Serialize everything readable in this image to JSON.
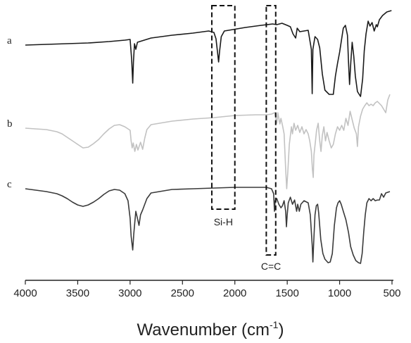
{
  "chart_data": {
    "type": "line",
    "title": "",
    "xlabel": "Wavenumber (cm",
    "xlabel_sup": "-1",
    "xlabel_end": ")",
    "ylabel": "",
    "xlim": [
      4000,
      500
    ],
    "x_reversed": true,
    "yticks_shown": false,
    "grid": false,
    "x_ticks": [
      4000,
      3500,
      3000,
      2500,
      2000,
      1500,
      1000,
      500
    ],
    "x_tick_labels": [
      "4000",
      "3500",
      "3000",
      "2500",
      "2000",
      "1500",
      "1000",
      "500"
    ],
    "series": [
      {
        "name": "a",
        "color": "#1a1a1a",
        "points": [
          [
            4000,
            64
          ],
          [
            3800,
            63
          ],
          [
            3600,
            62
          ],
          [
            3400,
            61
          ],
          [
            3200,
            59
          ],
          [
            3050,
            57
          ],
          [
            3000,
            56
          ],
          [
            2985,
            85
          ],
          [
            2975,
            118
          ],
          [
            2968,
            88
          ],
          [
            2958,
            62
          ],
          [
            2945,
            70
          ],
          [
            2930,
            60
          ],
          [
            2800,
            54
          ],
          [
            2600,
            50
          ],
          [
            2400,
            47
          ],
          [
            2250,
            44
          ],
          [
            2200,
            46
          ],
          [
            2180,
            55
          ],
          [
            2165,
            75
          ],
          [
            2155,
            88
          ],
          [
            2145,
            72
          ],
          [
            2130,
            52
          ],
          [
            2100,
            44
          ],
          [
            1900,
            39
          ],
          [
            1750,
            36
          ],
          [
            1640,
            34
          ],
          [
            1600,
            35
          ],
          [
            1550,
            33
          ],
          [
            1500,
            36
          ],
          [
            1470,
            38
          ],
          [
            1445,
            48
          ],
          [
            1420,
            54
          ],
          [
            1405,
            40
          ],
          [
            1380,
            45
          ],
          [
            1300,
            43
          ],
          [
            1270,
            70
          ],
          [
            1262,
            133
          ],
          [
            1255,
            70
          ],
          [
            1235,
            52
          ],
          [
            1210,
            56
          ],
          [
            1190,
            68
          ],
          [
            1165,
            105
          ],
          [
            1140,
            128
          ],
          [
            1100,
            134
          ],
          [
            1060,
            134
          ],
          [
            1040,
            108
          ],
          [
            1020,
            90
          ],
          [
            1000,
            74
          ],
          [
            980,
            55
          ],
          [
            965,
            40
          ],
          [
            945,
            36
          ],
          [
            925,
            50
          ],
          [
            915,
            88
          ],
          [
            905,
            120
          ],
          [
            893,
            88
          ],
          [
            880,
            60
          ],
          [
            865,
            80
          ],
          [
            850,
            108
          ],
          [
            830,
            130
          ],
          [
            800,
            137
          ],
          [
            780,
            112
          ],
          [
            765,
            72
          ],
          [
            748,
            48
          ],
          [
            728,
            30
          ],
          [
            710,
            37
          ],
          [
            690,
            32
          ],
          [
            670,
            44
          ],
          [
            650,
            35
          ],
          [
            640,
            38
          ],
          [
            620,
            28
          ],
          [
            590,
            22
          ],
          [
            550,
            17
          ],
          [
            505,
            15
          ]
        ]
      },
      {
        "name": "b",
        "color": "#c2c2c2",
        "points": [
          [
            4000,
            182
          ],
          [
            3900,
            183
          ],
          [
            3800,
            184
          ],
          [
            3700,
            187
          ],
          [
            3650,
            190
          ],
          [
            3600,
            195
          ],
          [
            3550,
            200
          ],
          [
            3500,
            205
          ],
          [
            3450,
            210
          ],
          [
            3400,
            209
          ],
          [
            3350,
            204
          ],
          [
            3300,
            198
          ],
          [
            3250,
            190
          ],
          [
            3200,
            183
          ],
          [
            3150,
            178
          ],
          [
            3100,
            177
          ],
          [
            3050,
            180
          ],
          [
            3000,
            185
          ],
          [
            2990,
            200
          ],
          [
            2980,
            210
          ],
          [
            2970,
            203
          ],
          [
            2955,
            215
          ],
          [
            2940,
            205
          ],
          [
            2925,
            213
          ],
          [
            2900,
            202
          ],
          [
            2880,
            212
          ],
          [
            2860,
            196
          ],
          [
            2840,
            184
          ],
          [
            2800,
            177
          ],
          [
            2600,
            172
          ],
          [
            2400,
            169
          ],
          [
            2200,
            167
          ],
          [
            2000,
            164
          ],
          [
            1800,
            163
          ],
          [
            1700,
            163
          ],
          [
            1650,
            162
          ],
          [
            1620,
            160
          ],
          [
            1600,
            175
          ],
          [
            1590,
            160
          ],
          [
            1570,
            176
          ],
          [
            1560,
            168
          ],
          [
            1545,
            178
          ],
          [
            1530,
            190
          ],
          [
            1515,
            240
          ],
          [
            1505,
            268
          ],
          [
            1495,
            245
          ],
          [
            1480,
            205
          ],
          [
            1460,
            180
          ],
          [
            1450,
            190
          ],
          [
            1435,
            175
          ],
          [
            1420,
            185
          ],
          [
            1400,
            178
          ],
          [
            1380,
            188
          ],
          [
            1360,
            180
          ],
          [
            1340,
            190
          ],
          [
            1320,
            184
          ],
          [
            1300,
            190
          ],
          [
            1285,
            200
          ],
          [
            1270,
            215
          ],
          [
            1260,
            240
          ],
          [
            1252,
            252
          ],
          [
            1245,
            220
          ],
          [
            1230,
            200
          ],
          [
            1220,
            185
          ],
          [
            1205,
            175
          ],
          [
            1190,
            200
          ],
          [
            1178,
            215
          ],
          [
            1165,
            192
          ],
          [
            1150,
            180
          ],
          [
            1135,
            200
          ],
          [
            1120,
            188
          ],
          [
            1100,
            200
          ],
          [
            1080,
            210
          ],
          [
            1060,
            205
          ],
          [
            1040,
            190
          ],
          [
            1020,
            180
          ],
          [
            1000,
            185
          ],
          [
            980,
            178
          ],
          [
            960,
            185
          ],
          [
            940,
            168
          ],
          [
            920,
            178
          ],
          [
            900,
            158
          ],
          [
            880,
            170
          ],
          [
            860,
            182
          ],
          [
            840,
            190
          ],
          [
            830,
            208
          ],
          [
            820,
            180
          ],
          [
            800,
            165
          ],
          [
            780,
            155
          ],
          [
            760,
            150
          ],
          [
            740,
            146
          ],
          [
            720,
            150
          ],
          [
            700,
            148
          ],
          [
            680,
            150
          ],
          [
            660,
            146
          ],
          [
            640,
            144
          ],
          [
            600,
            150
          ],
          [
            580,
            155
          ],
          [
            560,
            160
          ],
          [
            540,
            142
          ],
          [
            520,
            134
          ]
        ]
      },
      {
        "name": "c",
        "color": "#3a3a3a",
        "points": [
          [
            4000,
            268
          ],
          [
            3900,
            270
          ],
          [
            3800,
            272
          ],
          [
            3700,
            275
          ],
          [
            3650,
            278
          ],
          [
            3600,
            282
          ],
          [
            3550,
            287
          ],
          [
            3500,
            291
          ],
          [
            3450,
            293
          ],
          [
            3400,
            291
          ],
          [
            3350,
            287
          ],
          [
            3300,
            282
          ],
          [
            3250,
            276
          ],
          [
            3200,
            271
          ],
          [
            3150,
            269
          ],
          [
            3100,
            270
          ],
          [
            3050,
            275
          ],
          [
            3020,
            285
          ],
          [
            3000,
            310
          ],
          [
            2990,
            335
          ],
          [
            2975,
            355
          ],
          [
            2965,
            332
          ],
          [
            2955,
            315
          ],
          [
            2945,
            300
          ],
          [
            2930,
            310
          ],
          [
            2915,
            320
          ],
          [
            2900,
            305
          ],
          [
            2880,
            298
          ],
          [
            2860,
            290
          ],
          [
            2840,
            282
          ],
          [
            2800,
            274
          ],
          [
            2600,
            269
          ],
          [
            2400,
            268
          ],
          [
            2200,
            267
          ],
          [
            2000,
            266
          ],
          [
            1800,
            266
          ],
          [
            1700,
            266
          ],
          [
            1650,
            268
          ],
          [
            1630,
            275
          ],
          [
            1622,
            300
          ],
          [
            1615,
            285
          ],
          [
            1600,
            282
          ],
          [
            1580,
            290
          ],
          [
            1560,
            295
          ],
          [
            1545,
            292
          ],
          [
            1530,
            285
          ],
          [
            1515,
            300
          ],
          [
            1508,
            322
          ],
          [
            1500,
            305
          ],
          [
            1490,
            288
          ],
          [
            1470,
            280
          ],
          [
            1450,
            290
          ],
          [
            1430,
            284
          ],
          [
            1410,
            300
          ],
          [
            1400,
            290
          ],
          [
            1385,
            300
          ],
          [
            1370,
            290
          ],
          [
            1340,
            285
          ],
          [
            1300,
            288
          ],
          [
            1280,
            305
          ],
          [
            1262,
            348
          ],
          [
            1255,
            372
          ],
          [
            1248,
            345
          ],
          [
            1235,
            305
          ],
          [
            1222,
            292
          ],
          [
            1210,
            290
          ],
          [
            1200,
            302
          ],
          [
            1180,
            340
          ],
          [
            1160,
            360
          ],
          [
            1140,
            368
          ],
          [
            1110,
            373
          ],
          [
            1090,
            372
          ],
          [
            1070,
            360
          ],
          [
            1050,
            320
          ],
          [
            1030,
            295
          ],
          [
            1015,
            288
          ],
          [
            1000,
            285
          ],
          [
            985,
            290
          ],
          [
            965,
            300
          ],
          [
            940,
            312
          ],
          [
            915,
            330
          ],
          [
            895,
            350
          ],
          [
            870,
            362
          ],
          [
            845,
            370
          ],
          [
            820,
            373
          ],
          [
            800,
            374
          ],
          [
            785,
            360
          ],
          [
            770,
            330
          ],
          [
            755,
            305
          ],
          [
            740,
            288
          ],
          [
            720,
            282
          ],
          [
            700,
            285
          ],
          [
            680,
            282
          ],
          [
            660,
            285
          ],
          [
            640,
            284
          ],
          [
            620,
            284
          ],
          [
            600,
            275
          ],
          [
            580,
            280
          ],
          [
            560,
            274
          ],
          [
            540,
            273
          ],
          [
            520,
            272
          ]
        ]
      }
    ],
    "annotations": [
      {
        "label": "Si-H",
        "x_range": [
          2220,
          2000
        ]
      },
      {
        "label": "C=C",
        "x_range": [
          1700,
          1610
        ]
      }
    ]
  }
}
